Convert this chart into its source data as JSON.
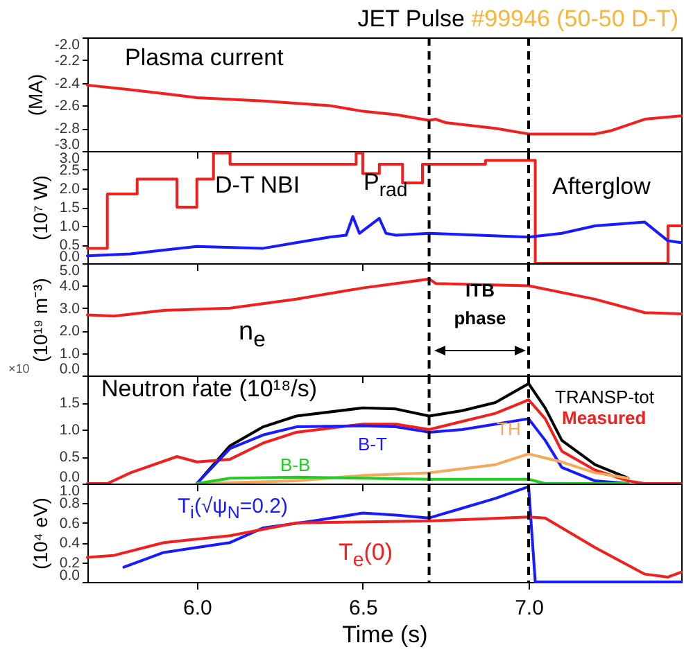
{
  "chart_data": [
    {
      "type": "line",
      "title": "JET Pulse",
      "subtitle": "#99946 (50-50 D-T)",
      "ylabel": "(MA)",
      "annotations": [
        "Plasma current"
      ],
      "tick_labels": "y",
      "xlim": [
        5.67,
        7.46
      ],
      "xticks": [
        {
          "value": 6,
          "label": null
        },
        {
          "value": 6.5,
          "label": null
        },
        {
          "value": 7,
          "label": null
        }
      ],
      "ylim": [
        -3.0,
        -2.0
      ],
      "yticks": [
        {
          "value": -3,
          "label": "-3.0"
        },
        {
          "value": -2.8,
          "label": "-2.8"
        },
        {
          "value": -2.6,
          "label": "-2.6"
        },
        {
          "value": -2.4,
          "label": "-2.4"
        },
        {
          "value": -2.2,
          "label": "-2.2"
        },
        {
          "value": -2,
          "label": "-2.0"
        }
      ],
      "ref_lines": [
        {
          "axis": "x",
          "value": 6.7,
          "color": "#000000",
          "line_style": "dashed"
        },
        {
          "axis": "x",
          "value": 7.0,
          "color": "#000000",
          "line_style": "dashed"
        }
      ],
      "series": [
        {
          "color": "#f0201e",
          "x": [
            5.67,
            5.8,
            6.0,
            6.2,
            6.4,
            6.5,
            6.6,
            6.7,
            6.72,
            6.75,
            6.9,
            7.0,
            7.2,
            7.25,
            7.35,
            7.46
          ],
          "values": [
            -2.42,
            -2.46,
            -2.53,
            -2.56,
            -2.6,
            -2.65,
            -2.68,
            -2.73,
            -2.72,
            -2.75,
            -2.8,
            -2.85,
            -2.85,
            -2.82,
            -2.72,
            -2.69
          ]
        }
      ]
    },
    {
      "type": "line",
      "ylabel": "(10⁷ W)",
      "annotations": [
        "D-T NBI",
        "P$_{rad}$",
        "Afterglow"
      ],
      "tick_labels": "y",
      "xlim": [
        5.67,
        7.46
      ],
      "xticks": [
        {
          "value": 6,
          "label": null
        },
        {
          "value": 6.5,
          "label": null
        },
        {
          "value": 7,
          "label": null
        }
      ],
      "ylim": [
        0,
        3.0
      ],
      "yticks": [
        {
          "value": 0,
          "label": "0.0"
        },
        {
          "value": 0.5,
          "label": "0.5"
        },
        {
          "value": 1,
          "label": "1.0"
        },
        {
          "value": 1.5,
          "label": "1.5"
        },
        {
          "value": 2,
          "label": "2.0"
        },
        {
          "value": 2.5,
          "label": "2.5"
        },
        {
          "value": 3,
          "label": "3.0"
        }
      ],
      "ref_lines": [
        {
          "axis": "x",
          "value": 6.7,
          "color": "#000000",
          "line_style": "dashed"
        },
        {
          "axis": "x",
          "value": 7.0,
          "color": "#000000",
          "line_style": "dashed"
        }
      ],
      "series": [
        {
          "type": "step",
          "color": "#f0201e",
          "x": [
            5.67,
            5.73,
            5.82,
            5.94,
            6.0,
            6.05,
            6.1,
            6.48,
            6.5,
            6.55,
            6.62,
            6.68,
            6.87,
            7.02,
            7.42,
            7.46
          ],
          "values": [
            0.4,
            1.85,
            2.25,
            1.5,
            2.25,
            2.95,
            2.65,
            2.95,
            2.4,
            2.65,
            2.15,
            2.65,
            2.75,
            0.0,
            1.0,
            1.0
          ]
        },
        {
          "color": "#1a1aff",
          "x": [
            5.67,
            5.8,
            5.9,
            6.0,
            6.2,
            6.3,
            6.4,
            6.45,
            6.47,
            6.49,
            6.55,
            6.57,
            6.6,
            6.7,
            6.85,
            7.0,
            7.1,
            7.2,
            7.35,
            7.42,
            7.46
          ],
          "values": [
            0.2,
            0.25,
            0.35,
            0.45,
            0.4,
            0.55,
            0.7,
            0.75,
            1.25,
            0.8,
            1.2,
            0.8,
            0.75,
            0.8,
            0.75,
            0.7,
            0.8,
            1.0,
            1.1,
            0.6,
            0.55
          ]
        }
      ]
    },
    {
      "type": "line",
      "ylabel": "(10¹⁹ m⁻³)",
      "annotations": [
        "n$_{e}$",
        "ITB phase"
      ],
      "tick_labels": "y",
      "xlim": [
        5.67,
        7.46
      ],
      "xticks": [
        {
          "value": 6,
          "label": null
        },
        {
          "value": 6.5,
          "label": null
        },
        {
          "value": 7,
          "label": null
        }
      ],
      "ylim": [
        0,
        5.0
      ],
      "yticks": [
        {
          "value": 0,
          "label": "0.0"
        },
        {
          "value": 1,
          "label": "1.0"
        },
        {
          "value": 2,
          "label": "2.0"
        },
        {
          "value": 3,
          "label": "3.0"
        },
        {
          "value": 4,
          "label": "4.0"
        },
        {
          "value": 5,
          "label": "5.0"
        }
      ],
      "ref_lines": [
        {
          "axis": "x",
          "value": 6.7,
          "color": "#000000",
          "line_style": "dashed"
        },
        {
          "axis": "x",
          "value": 7.0,
          "color": "#000000",
          "line_style": "dashed"
        }
      ],
      "series": [
        {
          "color": "#f0201e",
          "x": [
            5.67,
            5.75,
            5.9,
            6.1,
            6.3,
            6.5,
            6.6,
            6.7,
            6.72,
            7.0,
            7.2,
            7.35,
            7.46
          ],
          "values": [
            2.7,
            2.65,
            2.9,
            3.0,
            3.4,
            3.9,
            4.1,
            4.3,
            4.1,
            4.0,
            3.4,
            2.8,
            2.75
          ]
        }
      ]
    },
    {
      "type": "line",
      "annotations": [
        "×10",
        "Neutron rate (10¹⁸/s)"
      ],
      "tick_labels": "y",
      "xlim": [
        5.67,
        7.46
      ],
      "xticks": [
        {
          "value": 6,
          "label": null
        },
        {
          "value": 6.5,
          "label": null
        },
        {
          "value": 7,
          "label": null
        }
      ],
      "ylim": [
        0,
        2.0
      ],
      "yticks": [
        {
          "value": 0,
          "label": "0.0"
        },
        {
          "value": 0.5,
          "label": "0.5"
        },
        {
          "value": 1,
          "label": "1.0"
        },
        {
          "value": 1.5,
          "label": "1.5"
        }
      ],
      "ref_lines": [
        {
          "axis": "x",
          "value": 6.7,
          "color": "#000000",
          "line_style": "dashed"
        },
        {
          "axis": "x",
          "value": 7.0,
          "color": "#000000",
          "line_style": "dashed"
        }
      ],
      "series": [
        {
          "name": "TRANSP-tot",
          "color": "#000000",
          "x": [
            6.0,
            6.1,
            6.2,
            6.3,
            6.5,
            6.6,
            6.7,
            6.8,
            6.9,
            7.0,
            7.05,
            7.1,
            7.2,
            7.3
          ],
          "values": [
            0.0,
            0.7,
            1.05,
            1.25,
            1.4,
            1.38,
            1.25,
            1.35,
            1.5,
            1.85,
            1.4,
            0.8,
            0.35,
            0.1
          ]
        },
        {
          "name": "Measured",
          "color": "#f0201e",
          "x": [
            5.67,
            5.73,
            5.8,
            5.94,
            6.0,
            6.1,
            6.2,
            6.3,
            6.5,
            6.6,
            6.7,
            6.8,
            6.9,
            7.0,
            7.05,
            7.1,
            7.2,
            7.3,
            7.35,
            7.46
          ],
          "values": [
            0.0,
            0.0,
            0.2,
            0.5,
            0.4,
            0.45,
            0.75,
            0.95,
            1.1,
            1.1,
            1.0,
            1.15,
            1.3,
            1.55,
            1.2,
            0.6,
            0.25,
            0.05,
            0.0,
            0.0
          ]
        },
        {
          "name": "B-T",
          "color": "#1a1aff",
          "x": [
            6.0,
            6.1,
            6.2,
            6.3,
            6.5,
            6.6,
            6.7,
            6.8,
            6.9,
            7.0,
            7.05,
            7.1,
            7.2,
            7.3
          ],
          "values": [
            0.0,
            0.65,
            0.9,
            1.05,
            1.07,
            1.05,
            0.95,
            1.0,
            1.1,
            1.2,
            0.8,
            0.3,
            0.05,
            0.0
          ]
        },
        {
          "name": "TH",
          "color": "#f5a95a",
          "x": [
            6.0,
            6.3,
            6.5,
            6.7,
            6.9,
            7.0,
            7.1,
            7.2,
            7.3
          ],
          "values": [
            0.0,
            0.05,
            0.15,
            0.2,
            0.35,
            0.55,
            0.4,
            0.2,
            0.1
          ]
        },
        {
          "name": "B-B",
          "color": "#22cc22",
          "x": [
            6.0,
            6.1,
            6.3,
            6.7,
            7.0,
            7.05,
            7.3
          ],
          "values": [
            0.0,
            0.1,
            0.12,
            0.08,
            0.08,
            0.0,
            0.0
          ]
        }
      ]
    },
    {
      "type": "line",
      "xlabel": "Time (s)",
      "ylabel": "(10⁴ eV)",
      "xlim": [
        5.67,
        7.46
      ],
      "xticks": [
        {
          "value": 6,
          "label": "6.0"
        },
        {
          "value": 6.5,
          "label": "6.5"
        },
        {
          "value": 7,
          "label": "7.0"
        }
      ],
      "ylim": [
        0,
        1.0
      ],
      "yticks": [
        {
          "value": 0,
          "label": "0.0"
        },
        {
          "value": 0.2,
          "label": "0.2"
        },
        {
          "value": 0.4,
          "label": "0.4"
        },
        {
          "value": 0.6,
          "label": "0.6"
        },
        {
          "value": 0.8,
          "label": "0.8"
        },
        {
          "value": 1,
          "label": "1.0"
        }
      ],
      "ref_lines": [
        {
          "axis": "x",
          "value": 6.7,
          "color": "#000000",
          "line_style": "dashed"
        },
        {
          "axis": "x",
          "value": 7.0,
          "color": "#000000",
          "line_style": "dashed"
        }
      ],
      "series": [
        {
          "name": "T$_{i}$(√ψ$_{N}$=0.2)",
          "color": "#1a1aff",
          "x": [
            5.78,
            5.9,
            6.0,
            6.1,
            6.2,
            6.35,
            6.5,
            6.6,
            6.7,
            6.8,
            6.9,
            7.0,
            7.02,
            7.46
          ],
          "values": [
            0.15,
            0.3,
            0.35,
            0.4,
            0.55,
            0.62,
            0.7,
            0.68,
            0.65,
            0.75,
            0.85,
            0.97,
            0.0,
            0.0
          ]
        },
        {
          "name": "T$_{e}$(0)",
          "color": "#f0201e",
          "x": [
            5.67,
            5.75,
            5.9,
            6.1,
            6.3,
            6.7,
            7.0,
            7.05,
            7.2,
            7.35,
            7.42,
            7.46
          ],
          "values": [
            0.25,
            0.27,
            0.4,
            0.47,
            0.6,
            0.62,
            0.66,
            0.65,
            0.35,
            0.08,
            0.05,
            0.1
          ]
        }
      ]
    }
  ]
}
